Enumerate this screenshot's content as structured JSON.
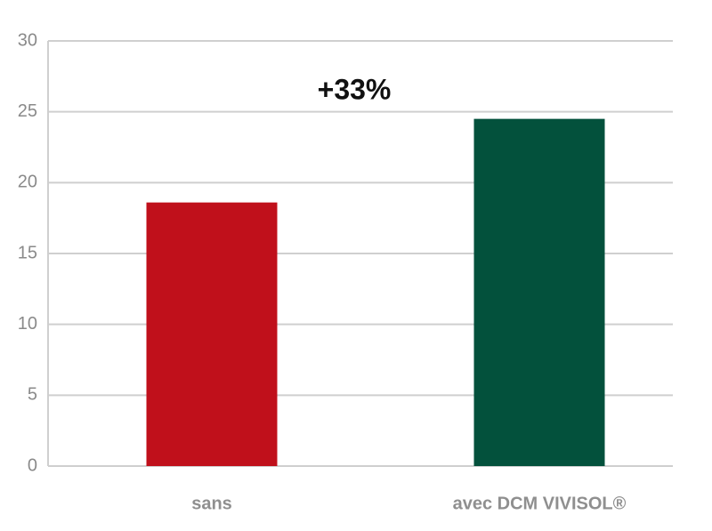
{
  "chart_data": {
    "type": "bar",
    "categories": [
      "sans",
      "avec DCM VIVISOL®"
    ],
    "values": [
      18.6,
      24.5
    ],
    "colors": [
      "#c0101b",
      "#03513c"
    ],
    "annotation": "+33%",
    "ylim": [
      0,
      30
    ],
    "yticks": [
      0,
      5,
      10,
      15,
      20,
      25,
      30
    ],
    "grid": true
  }
}
